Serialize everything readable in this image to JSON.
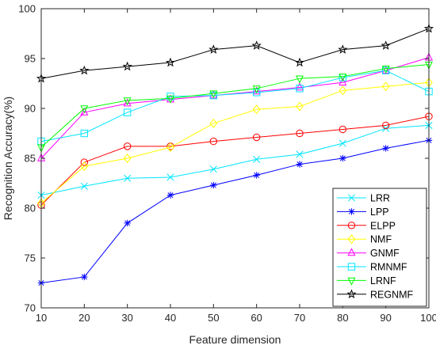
{
  "chart_data": {
    "type": "line",
    "xlabel": "Feature dimension",
    "ylabel": "Recognition Accuracy(%)",
    "xlim": [
      10,
      100
    ],
    "ylim": [
      70,
      100
    ],
    "x": [
      10,
      20,
      30,
      40,
      50,
      60,
      70,
      80,
      90,
      100
    ],
    "xticks": [
      "10",
      "20",
      "30",
      "40",
      "50",
      "60",
      "70",
      "80",
      "90",
      "100"
    ],
    "yticks": [
      "70",
      "75",
      "80",
      "85",
      "90",
      "95",
      "100"
    ],
    "legend_position": "bottom-right",
    "grid": false,
    "series": [
      {
        "name": "LRR",
        "color": "#00e5ff",
        "marker": "x",
        "values": [
          81.3,
          82.2,
          83.0,
          83.1,
          83.9,
          84.9,
          85.4,
          86.5,
          88.0,
          88.3
        ]
      },
      {
        "name": "LPP",
        "color": "#0000ff",
        "marker": "asterisk",
        "values": [
          72.5,
          73.1,
          78.5,
          81.3,
          82.3,
          83.3,
          84.4,
          85.0,
          86.0,
          86.8
        ]
      },
      {
        "name": "ELPP",
        "color": "#ff0000",
        "marker": "circle",
        "values": [
          80.3,
          84.6,
          86.2,
          86.2,
          86.7,
          87.1,
          87.5,
          87.9,
          88.3,
          89.2
        ]
      },
      {
        "name": "NMF",
        "color": "#ffff00",
        "marker": "diamond",
        "values": [
          80.5,
          84.2,
          85.0,
          86.1,
          88.5,
          89.9,
          90.2,
          91.8,
          92.2,
          92.6
        ]
      },
      {
        "name": "GNMF",
        "color": "#ff00ff",
        "marker": "triangle",
        "values": [
          85.0,
          89.6,
          90.5,
          90.9,
          91.3,
          91.7,
          92.1,
          92.6,
          93.8,
          95.1
        ]
      },
      {
        "name": "RMNMF",
        "color": "#00e5ff",
        "marker": "square",
        "values": [
          86.7,
          87.5,
          89.6,
          91.2,
          91.3,
          91.6,
          92.0,
          93.1,
          93.8,
          91.7
        ]
      },
      {
        "name": "LRNF",
        "color": "#00ff00",
        "marker": "triangle-down",
        "values": [
          86.1,
          90.0,
          90.8,
          91.0,
          91.5,
          92.0,
          93.0,
          93.2,
          94.0,
          94.4
        ]
      },
      {
        "name": "REGNMF",
        "color": "#000000",
        "marker": "pentagram",
        "values": [
          93.0,
          93.8,
          94.2,
          94.6,
          95.9,
          96.3,
          94.6,
          95.9,
          96.3,
          98.0
        ]
      }
    ]
  }
}
